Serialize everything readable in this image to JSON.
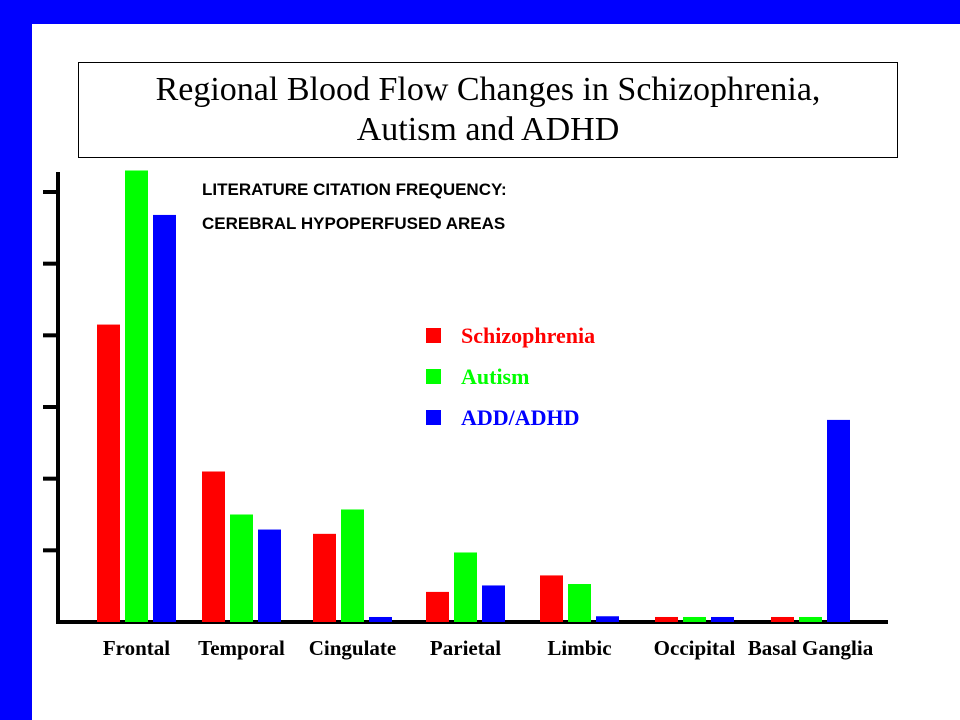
{
  "title": "Regional Blood Flow Changes in Schizophrenia,\nAutism and ADHD",
  "colors": {
    "frame": "#0000ff"
  },
  "chart_data": {
    "type": "bar",
    "title": "Regional Blood Flow Changes in Schizophrenia, Autism and ADHD",
    "subtitle_lines": [
      "LITERATURE CITATION FREQUENCY:",
      "CEREBRAL HYPOPERFUSED AREAS"
    ],
    "xlabel": "",
    "ylabel": "",
    "categories": [
      "Frontal",
      "Temporal",
      "Cingulate",
      "Parietal",
      "Limbic",
      "Occipital",
      "Basal Ganglia"
    ],
    "series": [
      {
        "name": "Schizophrenia",
        "color": "#ff0000",
        "values": [
          41.5,
          21.0,
          12.3,
          4.2,
          6.5,
          0.7,
          0.7
        ]
      },
      {
        "name": "Autism",
        "color": "#00ff00",
        "values": [
          63.0,
          15.0,
          15.7,
          9.7,
          5.3,
          0.7,
          0.7
        ]
      },
      {
        "name": "ADD/ADHD",
        "color": "#0000ff",
        "values": [
          56.8,
          12.9,
          0.7,
          5.1,
          0.8,
          0.7,
          28.2
        ]
      }
    ],
    "ylim": [
      0,
      60
    ],
    "yticks": [
      0,
      10,
      20,
      30,
      40,
      50,
      60
    ],
    "tick_labels_shown": false,
    "grid": false,
    "legend": "center"
  }
}
